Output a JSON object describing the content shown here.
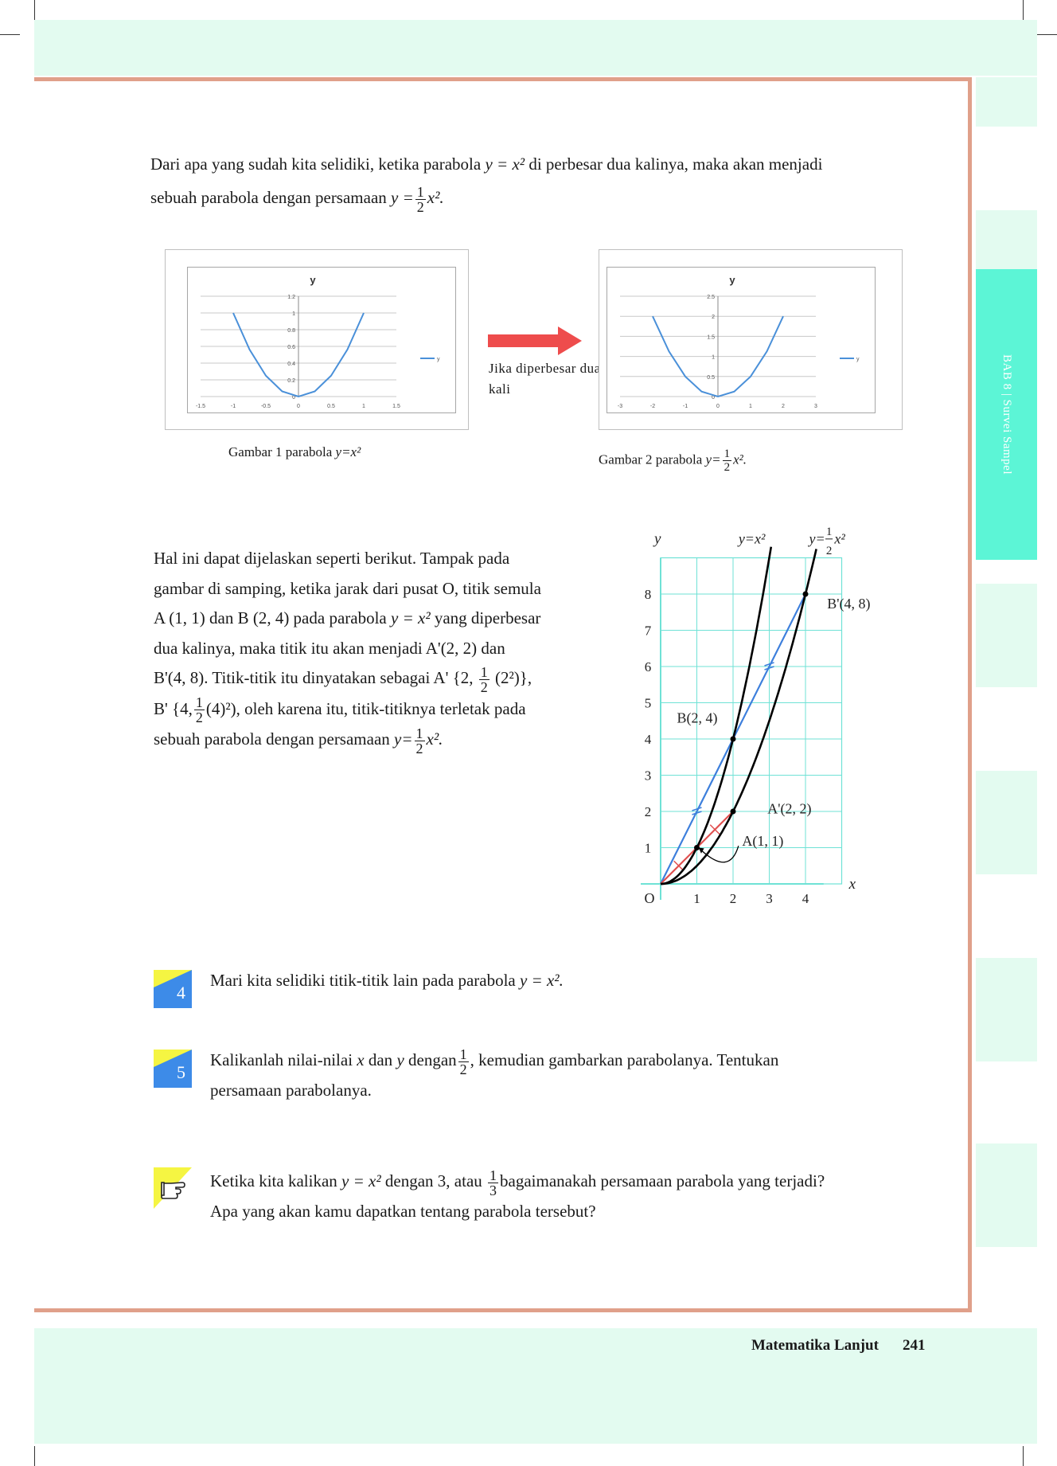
{
  "intro": {
    "line1_a": "Dari apa yang sudah kita selidiki, ketika parabola",
    "eq1": "y = x²",
    "line1_b": "di perbesar dua kalinya, maka akan menjadi",
    "line2_a": "sebuah parabola dengan persamaan",
    "eq2_prefix": "y =",
    "frac_num": "1",
    "frac_den": "2",
    "eq2_suffix": "x².",
    "line2_end": ""
  },
  "chart_data": [
    {
      "type": "line",
      "title": "y",
      "series": [
        {
          "name": "y",
          "color": "#4a90d9",
          "x": [
            -1.0,
            -0.75,
            -0.5,
            -0.25,
            0,
            0.25,
            0.5,
            0.75,
            1.0
          ],
          "y": [
            1.0,
            0.5625,
            0.25,
            0.0625,
            0,
            0.0625,
            0.25,
            0.5625,
            1.0
          ]
        }
      ],
      "xticks": [
        "-1.5",
        "-1",
        "-0.5",
        "0",
        "0.5",
        "1",
        "1.5"
      ],
      "yticks": [
        "0",
        "0.2",
        "0.4",
        "0.6",
        "0.8",
        "1",
        "1.2"
      ],
      "xlim": [
        -1.5,
        1.5
      ],
      "ylim": [
        0,
        1.2
      ],
      "legend": "right",
      "grid": true
    },
    {
      "type": "line",
      "title": "y",
      "series": [
        {
          "name": "y",
          "color": "#4a90d9",
          "x": [
            -2,
            -1.5,
            -1,
            -0.5,
            0,
            0.5,
            1,
            1.5,
            2
          ],
          "y": [
            2.0,
            1.125,
            0.5,
            0.125,
            0,
            0.125,
            0.5,
            1.125,
            2.0
          ]
        }
      ],
      "xticks": [
        "-3",
        "-2",
        "-1",
        "0",
        "1",
        "2",
        "3"
      ],
      "yticks": [
        "0",
        "0.5",
        "1",
        "1.5",
        "2",
        "2.5"
      ],
      "xlim": [
        -3,
        3
      ],
      "ylim": [
        0,
        2.5
      ],
      "legend": "right",
      "grid": true
    },
    {
      "type": "line",
      "x_axis_label": "x",
      "y_axis_label": "y",
      "origin_label": "O",
      "xticks": [
        "1",
        "2",
        "3",
        "4"
      ],
      "yticks": [
        "1",
        "2",
        "3",
        "4",
        "5",
        "6",
        "7",
        "8"
      ],
      "xlim": [
        0,
        4.5
      ],
      "ylim": [
        0,
        9
      ],
      "series": [
        {
          "name": "y=x²",
          "formula": "x^2",
          "color": "#000000"
        },
        {
          "name": "y= ½x²",
          "formula": "0.5*x^2",
          "color": "#000000"
        }
      ],
      "segments": [
        {
          "from": [
            0,
            0
          ],
          "to": [
            4,
            8
          ],
          "color": "#3d7fdc"
        },
        {
          "from": [
            0,
            0
          ],
          "to": [
            2,
            2
          ],
          "color": "#e05050"
        }
      ],
      "points": [
        {
          "label": "A(1, 1)",
          "x": 1,
          "y": 1
        },
        {
          "label": "B(2, 4)",
          "x": 2,
          "y": 4
        },
        {
          "label": "A'(2, 2)",
          "x": 2,
          "y": 2
        },
        {
          "label": "B'(4, 8)",
          "x": 4,
          "y": 8
        }
      ]
    }
  ],
  "arrow_text": "Jika diperbesar dua kali",
  "captions": {
    "fig1_a": "Gambar 1  parabola",
    "fig1_eq": "y=x²",
    "fig2_a": "Gambar 2  parabola",
    "fig2_prefix": "y=",
    "fig2_suffix": "x²."
  },
  "graph_labels": {
    "y_eq_x2": "y=x²",
    "y_eq_half_prefix": "y=",
    "y_eq_half_suffix": "x²",
    "frac_num": "1",
    "frac_den": "2"
  },
  "explain": {
    "l1": "Hal ini dapat dijelaskan seperti berikut. Tampak pada",
    "l2": "gambar di samping, ketika jarak dari pusat O, titik semula",
    "l3_a": "A (1, 1) dan B (2, 4) pada parabola",
    "l3_eq": "y = x²",
    "l3_b": "yang diperbesar",
    "l4": "dua kalinya, maka titik itu akan menjadi A'(2, 2) dan",
    "l5_a": "B'(4, 8). Titik-titik itu dinyatakan sebagai A' {2,",
    "l5_b": "(2²)},",
    "l6_a": "B' {4,",
    "l6_b": "(4)²),  oleh karena itu, titik-titiknya terletak pada",
    "l7_a": "sebuah parabola dengan persamaan",
    "l7_eq_prefix": "y=",
    "l7_eq_suffix": "x².",
    "frac_num": "1",
    "frac_den": "2"
  },
  "questions": [
    {
      "num": "4",
      "text_a": "Mari kita selidiki titik-titik lain pada parabola",
      "eq": "y = x²."
    },
    {
      "num": "5",
      "text_a": "Kalikanlah nilai-nilai",
      "x": "x",
      "dan": "dan",
      "y": "y",
      "dengan": "dengan",
      "frac_num": "1",
      "frac_den": "2",
      "text_b": ", kemudian gambarkan parabolanya. Tentukan",
      "text_c": "persamaan parabolanya."
    },
    {
      "icon": "pointing-hand-icon",
      "text_a": "Ketika kita kalikan",
      "eq": "y = x²",
      "text_b": "dengan 3, atau",
      "frac_num": "1",
      "frac_den": "3",
      "text_c": "bagaimanakah persamaan parabola yang terjadi?",
      "text_d": "Apa yang akan kamu dapatkan tentang parabola tersebut?"
    }
  ],
  "side_tab": "BAB 8  |  Survei Sampel",
  "footer": {
    "title": "Matematika Lanjut",
    "page": "241"
  }
}
